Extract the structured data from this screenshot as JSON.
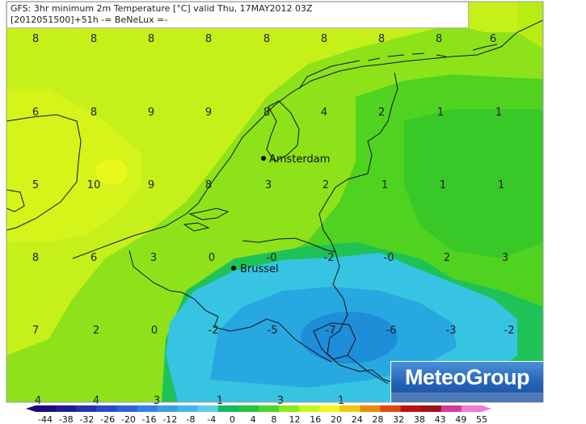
{
  "header": {
    "line1": "GFS: 3hr minimum 2m Temperature [°C] valid Thu, 17MAY2012 03Z",
    "line2": "[2012051500]+51h  -= BeNeLux =-"
  },
  "cities": [
    {
      "name": "Amsterdam"
    },
    {
      "name": "Brussel"
    }
  ],
  "grid_values": [
    "8",
    "8",
    "8",
    "8",
    "8",
    "8",
    "8",
    "8",
    "6",
    "6",
    "8",
    "9",
    "9",
    "8",
    "4",
    "2",
    "1",
    "1",
    "5",
    "10",
    "9",
    "8",
    "3",
    "2",
    "1",
    "1",
    "1",
    "8",
    "6",
    "3",
    "0",
    "-0",
    "-2",
    "-0",
    "2",
    "3",
    "7",
    "2",
    "0",
    "-2",
    "-5",
    "-7",
    "-6",
    "-3",
    "-2",
    "4",
    "4",
    "3",
    "1",
    "3",
    "1"
  ],
  "legend": {
    "ticks": [
      "-44",
      "-38",
      "-32",
      "-26",
      "-20",
      "-16",
      "-12",
      "-8",
      "-4",
      "0",
      "4",
      "8",
      "12",
      "16",
      "20",
      "24",
      "28",
      "32",
      "38",
      "43",
      "49",
      "55"
    ],
    "colors": [
      "#1a0a7a",
      "#1f1a95",
      "#2432b0",
      "#2a4bc6",
      "#2f62d6",
      "#3480e2",
      "#3a9ee6",
      "#40b8e6",
      "#5acfe6",
      "#13b860",
      "#1ec83a",
      "#46d82a",
      "#8fe81c",
      "#c8f51a",
      "#f1f51a",
      "#f0c80f",
      "#ea8a0a",
      "#dd4a0a",
      "#c01010",
      "#a3101c",
      "#d03aa0",
      "#f07ad8"
    ]
  },
  "brand": {
    "logo_text": "MeteoGroup"
  }
}
